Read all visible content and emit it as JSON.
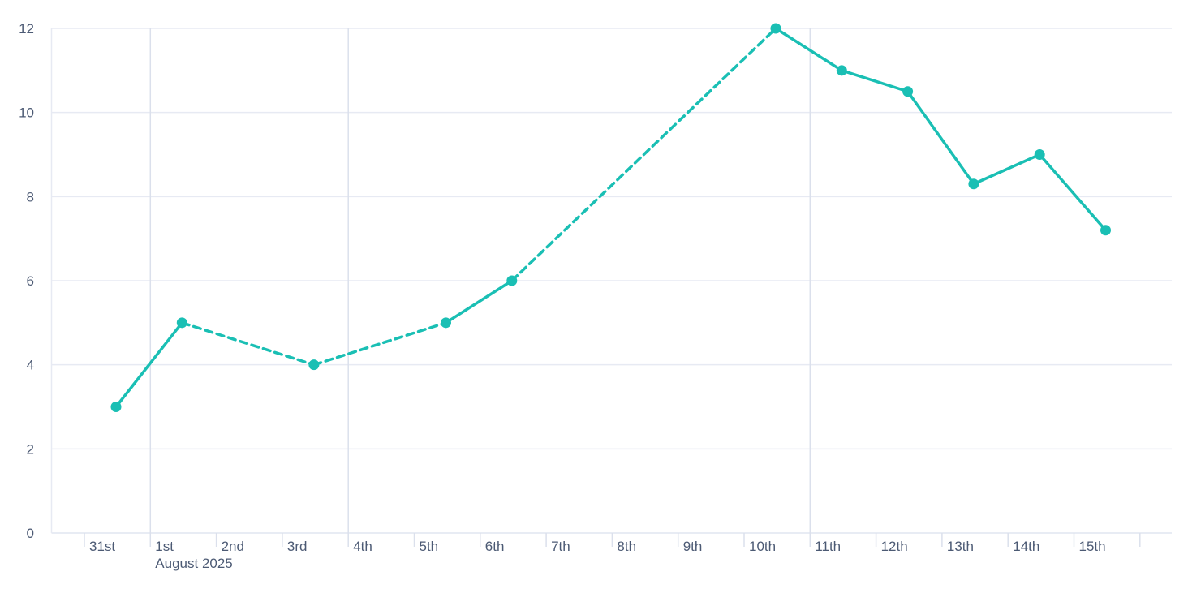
{
  "page": {
    "background": "#ffffff"
  },
  "colors": {
    "series": "#1abfb4",
    "grid": "#e7eaf3",
    "grid_emphasis": "#dbe0ec",
    "axis_line": "#e1e5f0",
    "tick": "#dbe0ec",
    "label": "#4c5a74",
    "background": "#ffffff"
  },
  "chart_data": {
    "type": "line",
    "title": "",
    "legend_visible": false,
    "grid": true,
    "x_axis": {
      "tick_labels": [
        "31st",
        "1st",
        "2nd",
        "3rd",
        "4th",
        "5th",
        "6th",
        "7th",
        "8th",
        "9th",
        "10th",
        "11th",
        "12th",
        "13th",
        "14th",
        "15th"
      ],
      "month_label": "August 2025",
      "month_label_at_tick": "1st",
      "emphasized_gridlines_at": [
        "1st",
        "4th",
        "11th"
      ],
      "trailing_unlabeled_ticks": 1
    },
    "y_axis": {
      "tick_labels": [
        "0",
        "2",
        "4",
        "6",
        "8",
        "10",
        "12"
      ],
      "min": 0,
      "max": 12
    },
    "series": [
      {
        "name": "daily-values",
        "color": "#1abfb4",
        "marker": "circle",
        "points": [
          {
            "x_label": "31st",
            "day_index": 0,
            "value": 3,
            "line_to_next": "solid"
          },
          {
            "x_label": "1st",
            "day_index": 1,
            "value": 5,
            "line_to_next": "dashed"
          },
          {
            "x_label": "3rd",
            "day_index": 3,
            "value": 4,
            "line_to_next": "dashed"
          },
          {
            "x_label": "5th",
            "day_index": 5,
            "value": 5,
            "line_to_next": "solid"
          },
          {
            "x_label": "6th",
            "day_index": 6,
            "value": 6,
            "line_to_next": "dashed"
          },
          {
            "x_label": "10th",
            "day_index": 10,
            "value": 12,
            "line_to_next": "solid"
          },
          {
            "x_label": "11th",
            "day_index": 11,
            "value": 11,
            "line_to_next": "solid"
          },
          {
            "x_label": "12th",
            "day_index": 12,
            "value": 10.5,
            "line_to_next": "solid"
          },
          {
            "x_label": "13th",
            "day_index": 13,
            "value": 8.3,
            "line_to_next": "solid"
          },
          {
            "x_label": "14th",
            "day_index": 14,
            "value": 9,
            "line_to_next": "solid"
          },
          {
            "x_label": "15th",
            "day_index": 15,
            "value": 7.2,
            "line_to_next": null
          }
        ]
      }
    ]
  }
}
